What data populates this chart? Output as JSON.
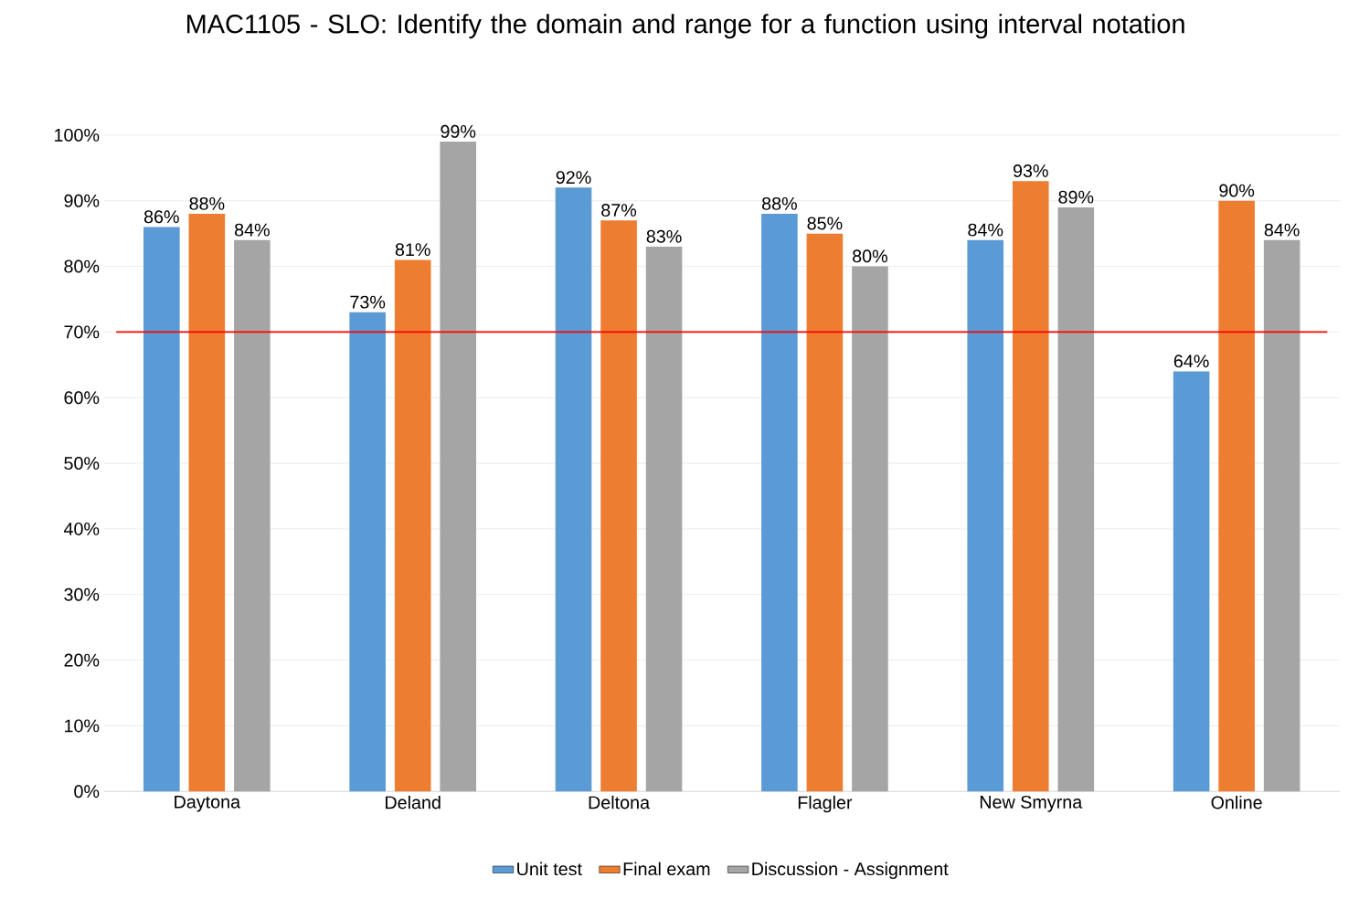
{
  "chart_data": {
    "type": "bar",
    "title": "MAC1105 - SLO: Identify the domain and range for a function using interval notation",
    "categories": [
      "Daytona",
      "Deland",
      "Deltona",
      "Flagler",
      "New Smyrna",
      "Online"
    ],
    "series": [
      {
        "name": "Unit test",
        "color": "#5b9bd5",
        "values": [
          86,
          73,
          92,
          88,
          84,
          64
        ],
        "value_labels": [
          "86%",
          "73%",
          "92%",
          "88%",
          "84%",
          "64%"
        ]
      },
      {
        "name": "Final exam",
        "color": "#ed7d31",
        "values": [
          88,
          81,
          87,
          85,
          93,
          90
        ],
        "value_labels": [
          "88%",
          "81%",
          "87%",
          "85%",
          "93%",
          "90%"
        ]
      },
      {
        "name": "Discussion - Assignment",
        "color": "#a5a5a5",
        "values": [
          84,
          99,
          83,
          80,
          89,
          84
        ],
        "value_labels": [
          "84%",
          "99%",
          "83%",
          "80%",
          "89%",
          "84%"
        ]
      }
    ],
    "ylim": [
      0,
      100
    ],
    "yticks": [
      {
        "value": 0,
        "label": "0%"
      },
      {
        "value": 10,
        "label": "10%"
      },
      {
        "value": 20,
        "label": "20%"
      },
      {
        "value": 30,
        "label": "30%"
      },
      {
        "value": 40,
        "label": "40%"
      },
      {
        "value": 50,
        "label": "50%"
      },
      {
        "value": 60,
        "label": "60%"
      },
      {
        "value": 70,
        "label": "70%"
      },
      {
        "value": 80,
        "label": "80%"
      },
      {
        "value": 90,
        "label": "90%"
      },
      {
        "value": 100,
        "label": "100%"
      }
    ],
    "ref_lines": [
      {
        "axis": "y",
        "value": 70,
        "color": "#ff0000"
      }
    ],
    "grid": "y",
    "legend": "bottom"
  }
}
